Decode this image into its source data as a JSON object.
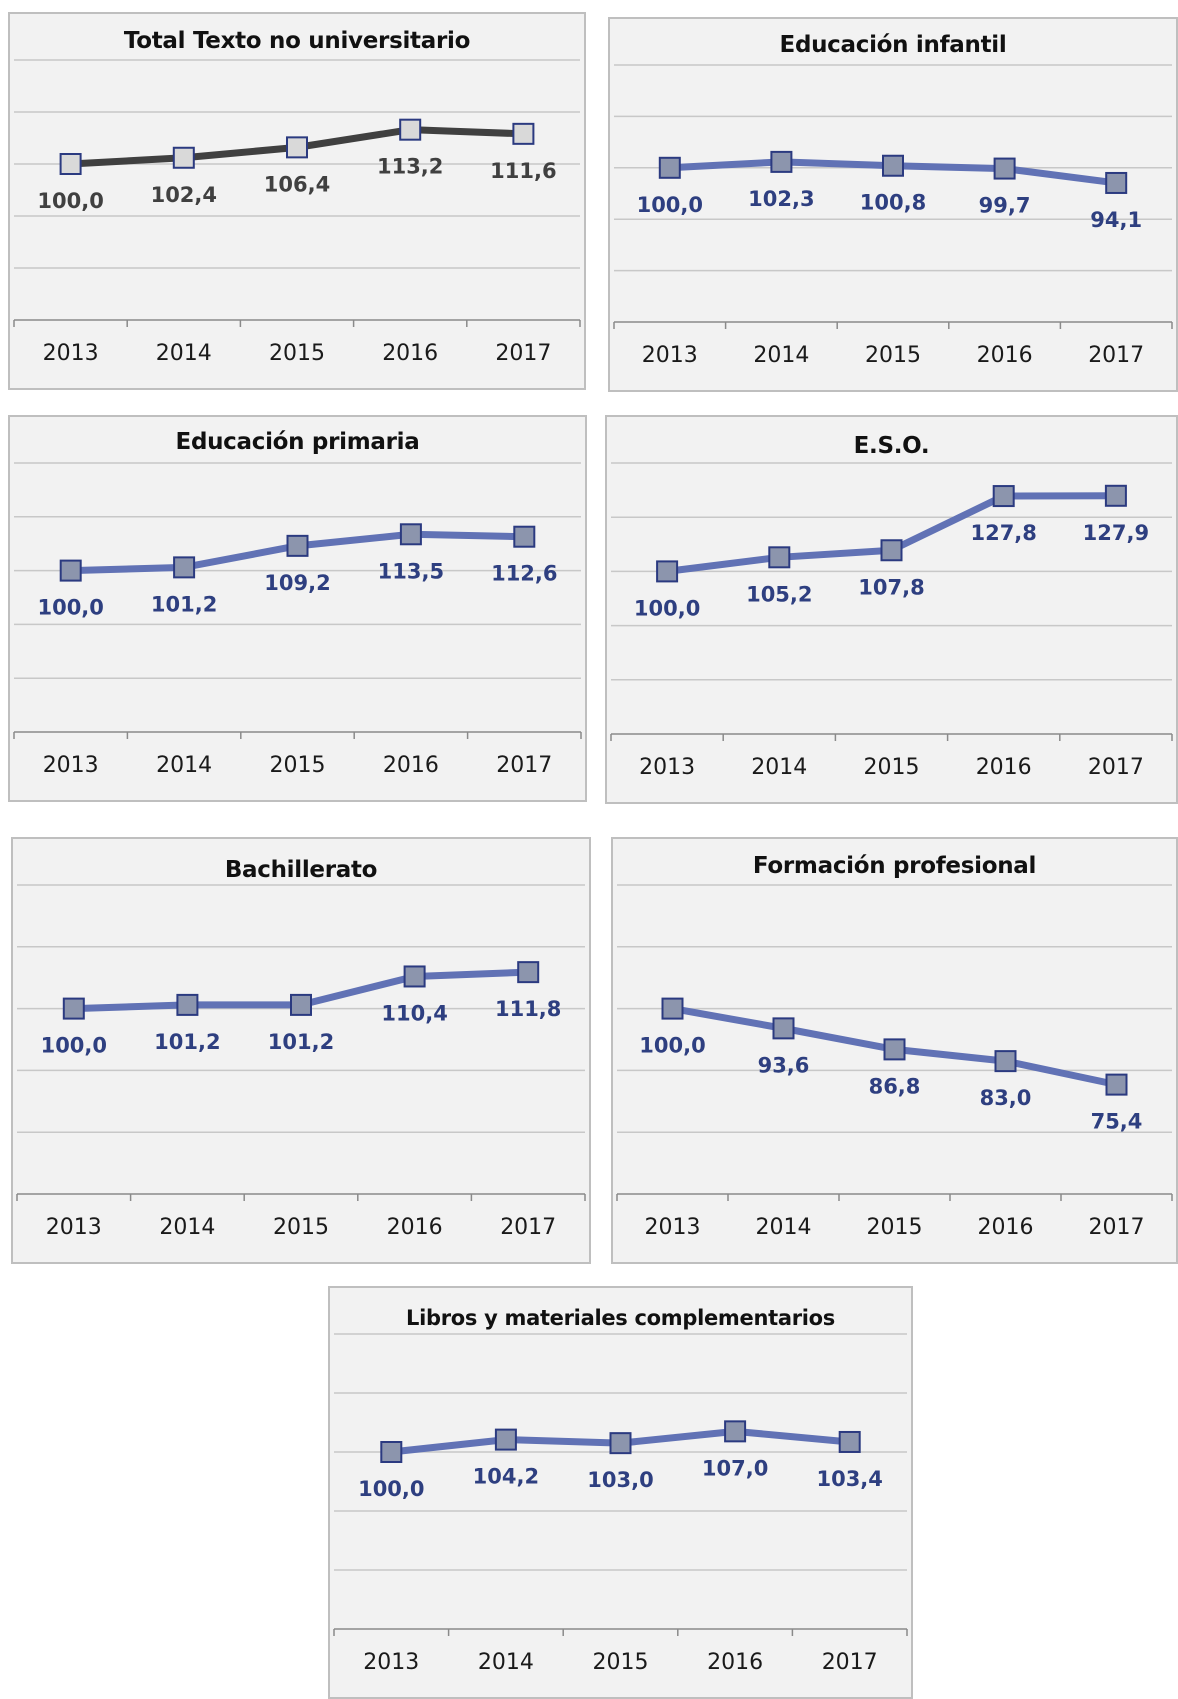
{
  "chart_data": [
    {
      "type": "line",
      "title": "Total Texto no universitario",
      "categories": [
        "2013",
        "2014",
        "2015",
        "2016",
        "2017"
      ],
      "series": [
        {
          "values": [
            100.0,
            102.4,
            106.4,
            113.2,
            111.6
          ]
        }
      ],
      "labels": [
        "100,0",
        "102,4",
        "106,4",
        "113,2",
        "111,6"
      ],
      "ylim": [
        40,
        140
      ],
      "grid": true,
      "line_color": "#404040",
      "marker_color": "#d9d9d9",
      "label_color": "#404040"
    },
    {
      "type": "line",
      "title": "Educación infantil",
      "categories": [
        "2013",
        "2014",
        "2015",
        "2016",
        "2017"
      ],
      "series": [
        {
          "values": [
            100.0,
            102.3,
            100.8,
            99.7,
            94.1
          ]
        }
      ],
      "labels": [
        "100,0",
        "102,3",
        "100,8",
        "99,7",
        "94,1"
      ],
      "ylim": [
        40,
        140
      ],
      "grid": true,
      "line_color": "#6172b5",
      "marker_color": "#8c95ad",
      "label_color": "#2e3f80"
    },
    {
      "type": "line",
      "title": "Educación primaria",
      "categories": [
        "2013",
        "2014",
        "2015",
        "2016",
        "2017"
      ],
      "series": [
        {
          "values": [
            100.0,
            101.2,
            109.2,
            113.5,
            112.6
          ]
        }
      ],
      "labels": [
        "100,0",
        "101,2",
        "109,2",
        "113,5",
        "112,6"
      ],
      "ylim": [
        40,
        140
      ],
      "grid": true,
      "line_color": "#6172b5",
      "marker_color": "#8c95ad",
      "label_color": "#2e3f80"
    },
    {
      "type": "line",
      "title": "E.S.O.",
      "categories": [
        "2013",
        "2014",
        "2015",
        "2016",
        "2017"
      ],
      "series": [
        {
          "values": [
            100.0,
            105.2,
            107.8,
            127.8,
            127.9
          ]
        }
      ],
      "labels": [
        "100,0",
        "105,2",
        "107,8",
        "127,8",
        "127,9"
      ],
      "ylim": [
        40,
        140
      ],
      "grid": true,
      "line_color": "#6172b5",
      "marker_color": "#8c95ad",
      "label_color": "#2e3f80"
    },
    {
      "type": "line",
      "title": "Bachillerato",
      "categories": [
        "2013",
        "2014",
        "2015",
        "2016",
        "2017"
      ],
      "series": [
        {
          "values": [
            100.0,
            101.2,
            101.2,
            110.4,
            111.8
          ]
        }
      ],
      "labels": [
        "100,0",
        "101,2",
        "101,2",
        "110,4",
        "111,8"
      ],
      "ylim": [
        40,
        140
      ],
      "grid": true,
      "line_color": "#6172b5",
      "marker_color": "#8c95ad",
      "label_color": "#2e3f80"
    },
    {
      "type": "line",
      "title": "Formación profesional",
      "categories": [
        "2013",
        "2014",
        "2015",
        "2016",
        "2017"
      ],
      "series": [
        {
          "values": [
            100.0,
            93.6,
            86.8,
            83.0,
            75.4
          ]
        }
      ],
      "labels": [
        "100,0",
        "93,6",
        "86,8",
        "83,0",
        "75,4"
      ],
      "ylim": [
        40,
        140
      ],
      "grid": true,
      "line_color": "#6172b5",
      "marker_color": "#8c95ad",
      "label_color": "#2e3f80"
    },
    {
      "type": "line",
      "title": "Libros y materiales complementarios",
      "categories": [
        "2013",
        "2014",
        "2015",
        "2016",
        "2017"
      ],
      "series": [
        {
          "values": [
            100.0,
            104.2,
            103.0,
            107.0,
            103.4
          ]
        }
      ],
      "labels": [
        "100,0",
        "104,2",
        "103,0",
        "107,0",
        "103,4"
      ],
      "ylim": [
        40,
        140
      ],
      "grid": true,
      "line_color": "#6172b5",
      "marker_color": "#8c95ad",
      "label_color": "#2e3f80"
    }
  ]
}
